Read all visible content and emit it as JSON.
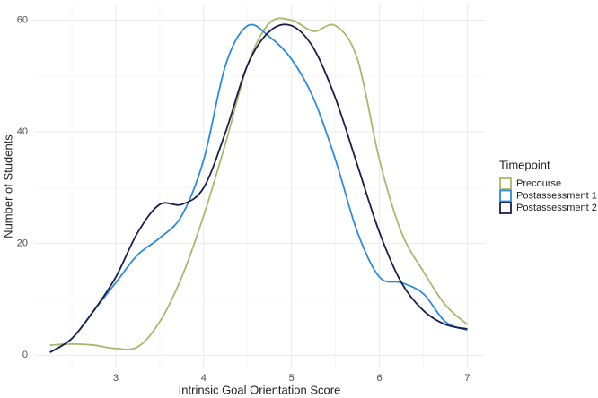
{
  "chart_data": {
    "type": "line",
    "x_label": "Intrinsic Goal Orientation Score",
    "y_label": "Number of Students",
    "legend_title": "Timepoint",
    "legend_position": "right",
    "grid": true,
    "x": [
      2.25,
      2.5,
      2.75,
      3.0,
      3.25,
      3.5,
      3.75,
      4.0,
      4.25,
      4.5,
      4.75,
      5.0,
      5.25,
      5.5,
      5.75,
      6.0,
      6.25,
      6.5,
      6.75,
      7.0
    ],
    "series": [
      {
        "name": "Precourse",
        "color": "#a9b86c",
        "values": [
          1.8,
          2,
          1.8,
          1.2,
          1.5,
          6,
          14,
          25,
          38,
          52,
          59.5,
          60,
          58,
          59,
          53,
          35,
          22,
          15,
          9,
          5.5
        ]
      },
      {
        "name": "Postassessment 1",
        "color": "#2a8be0",
        "values": [
          0.5,
          3,
          8,
          13,
          18,
          21,
          25,
          35,
          52,
          59,
          57,
          53,
          46,
          35,
          22,
          14,
          13,
          11,
          6,
          4.5
        ]
      },
      {
        "name": "Postassessment 2",
        "color": "#1a1f4a",
        "values": [
          0.5,
          3,
          8,
          14,
          22,
          27,
          27,
          30,
          40,
          52,
          58,
          59,
          55,
          46,
          34,
          22,
          13,
          8,
          5.5,
          4.7
        ]
      }
    ],
    "xlim": [
      2.07,
      7.2
    ],
    "xticks": [
      3,
      4,
      5,
      6,
      7
    ],
    "ylim": [
      -2.2,
      62.8
    ],
    "yticks": [
      0,
      20,
      40,
      60
    ]
  }
}
